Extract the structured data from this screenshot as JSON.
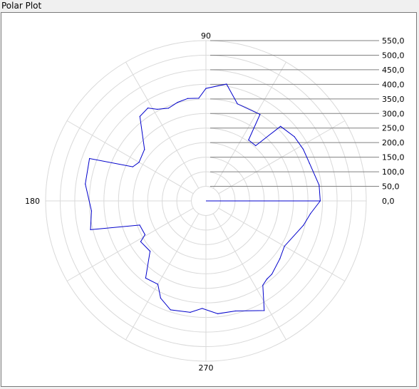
{
  "window": {
    "title": "Polar Plot"
  },
  "chart_data": {
    "type": "polar_line",
    "title": "",
    "angle_labels": [
      {
        "deg": 90,
        "text": "90"
      },
      {
        "deg": 180,
        "text": "180"
      },
      {
        "deg": 270,
        "text": "270"
      }
    ],
    "radial_ticks": [
      {
        "value": 0,
        "text": "0,0"
      },
      {
        "value": 50,
        "text": "50,0"
      },
      {
        "value": 100,
        "text": "100,0"
      },
      {
        "value": 150,
        "text": "150,0"
      },
      {
        "value": 200,
        "text": "200,0"
      },
      {
        "value": 250,
        "text": "250,0"
      },
      {
        "value": 300,
        "text": "300,0"
      },
      {
        "value": 350,
        "text": "350,0"
      },
      {
        "value": 400,
        "text": "400,0"
      },
      {
        "value": 450,
        "text": "450,0"
      },
      {
        "value": 500,
        "text": "500,0"
      },
      {
        "value": 550,
        "text": "550,0"
      }
    ],
    "rlim": [
      0,
      550
    ],
    "grid": true,
    "series_color": "#0000cc",
    "series": [
      {
        "name": "",
        "points": [
          [
            0,
            392
          ],
          [
            8,
            392
          ],
          [
            20,
            378
          ],
          [
            28,
            378
          ],
          [
            36,
            375
          ],
          [
            45,
            362
          ],
          [
            48,
            255
          ],
          [
            55,
            255
          ],
          [
            58,
            350
          ],
          [
            72,
            350
          ],
          [
            80,
            407
          ],
          [
            90,
            386
          ],
          [
            94,
            353
          ],
          [
            100,
            357
          ],
          [
            106,
            352
          ],
          [
            112,
            343
          ],
          [
            118,
            356
          ],
          [
            122,
            376
          ],
          [
            128,
            368
          ],
          [
            140,
            275
          ],
          [
            150,
            265
          ],
          [
            155,
            277
          ],
          [
            160,
            425
          ],
          [
            172,
            418
          ],
          [
            185,
            394
          ],
          [
            194,
            408
          ],
          [
            200,
            242
          ],
          [
            209,
            239
          ],
          [
            212,
            264
          ],
          [
            222,
            258
          ],
          [
            232,
            336
          ],
          [
            240,
            330
          ],
          [
            245,
            368
          ],
          [
            252,
            393
          ],
          [
            262,
            386
          ],
          [
            268,
            369
          ],
          [
            276,
            389
          ],
          [
            285,
            391
          ],
          [
            298,
            426
          ],
          [
            304,
            349
          ],
          [
            308,
            340
          ],
          [
            312,
            338
          ],
          [
            322,
            322
          ],
          [
            330,
            311
          ],
          [
            346,
            345
          ],
          [
            353,
            361
          ],
          [
            360,
            392
          ]
        ]
      }
    ]
  }
}
